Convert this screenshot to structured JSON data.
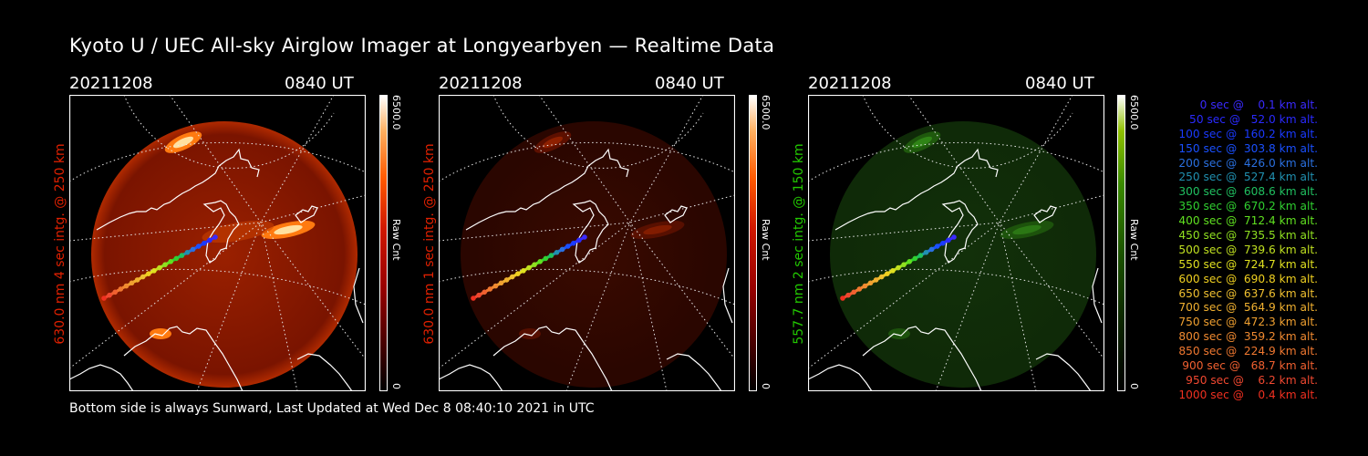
{
  "title": "Kyoto U / UEC All-sky Airglow Imager at Longyearbyen — Realtime Data",
  "footer": "Bottom side is always Sunward, Last Updated at Wed Dec  8 08:40:10 2021 in UTC",
  "panels": [
    {
      "date": "20211208",
      "time": "0840 UT",
      "ylabel": "630.0 nm 4 sec intg. @ 250 km",
      "label_color": "#e02000",
      "cbar_max": "6500.0",
      "cbar_min": "0",
      "cbar_unit": "Raw Cnt",
      "palette": "red-hot",
      "intensity": "bright"
    },
    {
      "date": "20211208",
      "time": "0840 UT",
      "ylabel": "630.0 nm 1 sec intg. @ 250 km",
      "label_color": "#e02000",
      "cbar_max": "6500.0",
      "cbar_min": "0",
      "cbar_unit": "Raw Cnt",
      "palette": "red-hot",
      "intensity": "dim"
    },
    {
      "date": "20211208",
      "time": "0840 UT",
      "ylabel": "557.7 nm 2 sec intg. @ 150 km",
      "label_color": "#22c800",
      "cbar_max": "6500.0",
      "cbar_min": "0",
      "cbar_unit": "Raw Cnt",
      "palette": "green",
      "intensity": "dim"
    }
  ],
  "legend": [
    {
      "text": "   0 sec @    0.1 km alt.",
      "color": "#3a2aff"
    },
    {
      "text": "  50 sec @   52.0 km alt.",
      "color": "#2a2aff"
    },
    {
      "text": " 100 sec @  160.2 km alt.",
      "color": "#1a3aff"
    },
    {
      "text": " 150 sec @  303.8 km alt.",
      "color": "#1a50ff"
    },
    {
      "text": " 200 sec @  426.0 km alt.",
      "color": "#2a70e0"
    },
    {
      "text": " 250 sec @  527.4 km alt.",
      "color": "#2090b0"
    },
    {
      "text": " 300 sec @  608.6 km alt.",
      "color": "#20c060"
    },
    {
      "text": " 350 sec @  670.2 km alt.",
      "color": "#30d030"
    },
    {
      "text": " 400 sec @  712.4 km alt.",
      "color": "#60e020"
    },
    {
      "text": " 450 sec @  735.5 km alt.",
      "color": "#90e020"
    },
    {
      "text": " 500 sec @  739.6 km alt.",
      "color": "#c0e020"
    },
    {
      "text": " 550 sec @  724.7 km alt.",
      "color": "#e0e020"
    },
    {
      "text": " 600 sec @  690.8 km alt.",
      "color": "#f0d020"
    },
    {
      "text": " 650 sec @  637.6 km alt.",
      "color": "#f0c030"
    },
    {
      "text": " 700 sec @  564.9 km alt.",
      "color": "#f0b030"
    },
    {
      "text": " 750 sec @  472.3 km alt.",
      "color": "#f0a030"
    },
    {
      "text": " 800 sec @  359.2 km alt.",
      "color": "#f08a30"
    },
    {
      "text": " 850 sec @  224.9 km alt.",
      "color": "#f07830"
    },
    {
      "text": " 900 sec @   68.7 km alt.",
      "color": "#f06030"
    },
    {
      "text": " 950 sec @    6.2 km alt.",
      "color": "#f04830"
    },
    {
      "text": "1000 sec @    0.4 km alt.",
      "color": "#f03020"
    }
  ]
}
